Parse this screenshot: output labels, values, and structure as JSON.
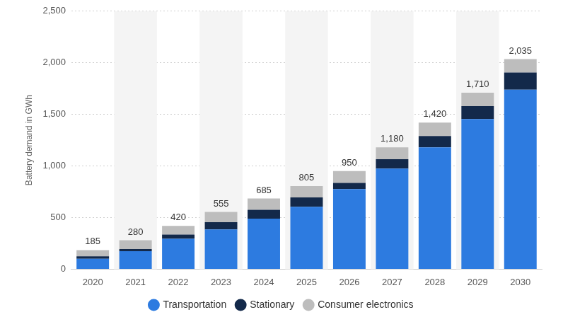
{
  "chart_data": {
    "type": "bar",
    "y_label": "Battery demand in GWh",
    "categories": [
      "2020",
      "2021",
      "2022",
      "2023",
      "2024",
      "2025",
      "2026",
      "2027",
      "2028",
      "2029",
      "2030"
    ],
    "series": [
      {
        "name": "Transportation",
        "color": "#2d7be0",
        "values": [
          100,
          175,
          295,
          385,
          490,
          605,
          775,
          975,
          1180,
          1455,
          1740
        ]
      },
      {
        "name": "Stationary",
        "color": "#13294a",
        "values": [
          25,
          20,
          40,
          70,
          85,
          90,
          60,
          90,
          110,
          125,
          165
        ]
      },
      {
        "name": "Consumer electronics",
        "color": "#bdbdbd",
        "values": [
          60,
          85,
          85,
          100,
          110,
          110,
          115,
          115,
          130,
          130,
          130
        ]
      }
    ],
    "totals": [
      185,
      280,
      420,
      555,
      685,
      805,
      950,
      1180,
      1420,
      1710,
      2035
    ],
    "total_labels": [
      "185",
      "280",
      "420",
      "555",
      "685",
      "805",
      "950",
      "1,180",
      "1,420",
      "1,710",
      "2,035"
    ],
    "ylim": [
      0,
      2500
    ],
    "yticks": [
      0,
      500,
      {
        "value": 1000,
        "label": "1,000"
      },
      {
        "value": 1500,
        "label": "1,500"
      },
      {
        "value": 2000,
        "label": "2,000"
      },
      {
        "value": 2500,
        "label": "2,500"
      }
    ],
    "stacked": true,
    "grid": true,
    "legend": "bottom"
  }
}
